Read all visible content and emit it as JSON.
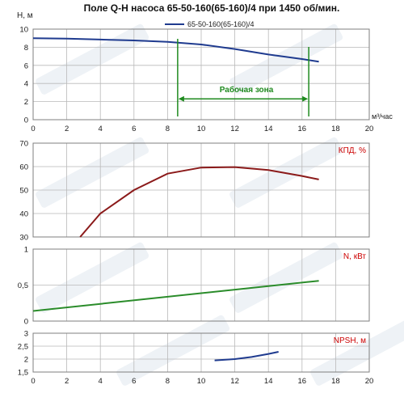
{
  "chart_data": {
    "type": "line",
    "title": "Поле Q-H насоса 65-50-160(65-160)/4 при 1450 об/мин.",
    "legend": "65-50-160(65-160)/4",
    "xlabel": "м³/час",
    "xlim": [
      0,
      20
    ],
    "xticks": [
      0,
      2,
      4,
      6,
      8,
      10,
      12,
      14,
      16,
      18,
      20
    ],
    "colors": {
      "qh": "#1f3b8f",
      "kpd": "#8b1a1a",
      "power": "#2a8c2a",
      "npsh": "#1f3b8f",
      "zone": "#1f8a1f",
      "label": "#cc0000"
    },
    "panels": [
      {
        "id": "qh",
        "ylabel": "H, м",
        "ylim": [
          0,
          10
        ],
        "yticks": [
          "0",
          "2",
          "4",
          "6",
          "8",
          "10"
        ],
        "series": [
          {
            "name": "65-50-160(65-160)/4",
            "x": [
              0,
              2,
              4,
              6,
              8,
              10,
              12,
              14,
              16,
              17
            ],
            "y": [
              9.0,
              8.95,
              8.85,
              8.75,
              8.6,
              8.3,
              7.8,
              7.2,
              6.7,
              6.4
            ]
          }
        ],
        "work_zone": {
          "label": "Рабочая зона",
          "from": 8.6,
          "to": 16.4,
          "arrow_y": 2.3
        }
      },
      {
        "id": "kpd",
        "ylabel": "КПД, %",
        "ylim": [
          30,
          70
        ],
        "yticks": [
          "30",
          "40",
          "50",
          "60",
          "70"
        ],
        "series": [
          {
            "name": "КПД, %",
            "x": [
              2.8,
              4,
              6,
              8,
              10,
              12,
              14,
              16,
              17
            ],
            "y": [
              30,
              40,
              50,
              57,
              59.6,
              59.8,
              58.5,
              56,
              54.5
            ]
          }
        ]
      },
      {
        "id": "power",
        "ylabel": "N, кВт",
        "ylim": [
          0,
          1
        ],
        "yticks": [
          "0",
          "0,5",
          "1"
        ],
        "series": [
          {
            "name": "N, кВт",
            "x": [
              0,
              17
            ],
            "y": [
              0.14,
              0.56
            ]
          }
        ]
      },
      {
        "id": "npsh",
        "ylabel": "NPSH, м",
        "ylim": [
          1.5,
          3
        ],
        "yticks": [
          "1,5",
          "2",
          "2,5",
          "3"
        ],
        "series": [
          {
            "name": "NPSH, м",
            "x": [
              10.8,
              12,
              13,
              14,
              14.6
            ],
            "y": [
              1.95,
              2.0,
              2.08,
              2.2,
              2.28
            ]
          }
        ]
      }
    ]
  }
}
